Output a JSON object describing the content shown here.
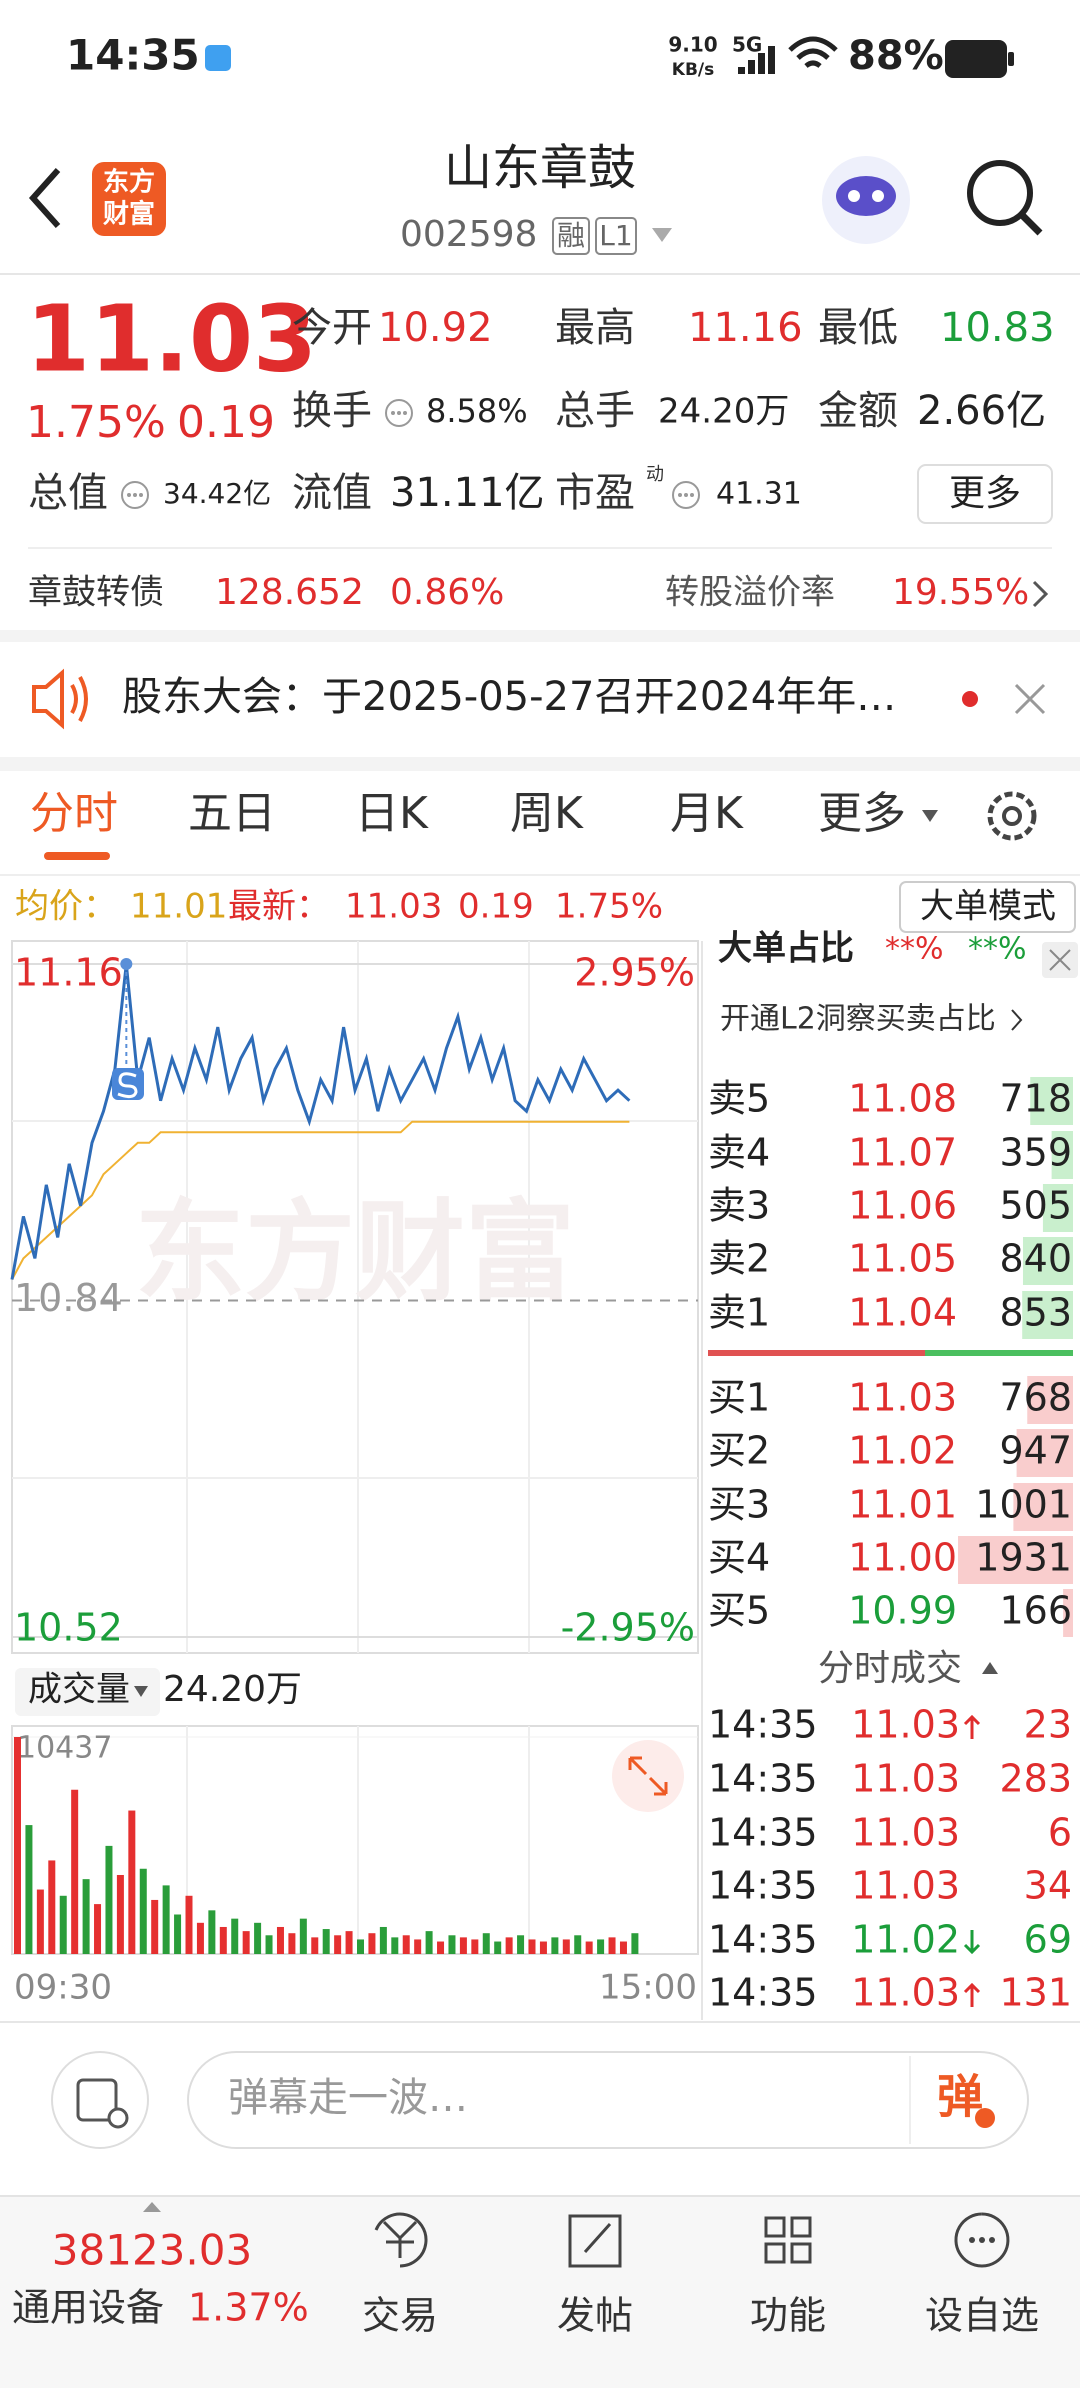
{
  "status_bar": {
    "time": "14:35",
    "net_speed": "9.10",
    "net_unit": "KB/s",
    "network": "5G",
    "battery": "88%"
  },
  "header": {
    "logo": [
      "东方",
      "财富"
    ],
    "title": "山东章鼓",
    "code": "002598",
    "badges": [
      "融",
      "L1"
    ]
  },
  "quote": {
    "price": "11.03",
    "change_pct": "1.75%",
    "change": "0.19",
    "stats": [
      {
        "label": "今开",
        "value": "10.92",
        "tone": "up"
      },
      {
        "label": "最高",
        "value": "11.16",
        "tone": "up"
      },
      {
        "label": "最低",
        "value": "10.83",
        "tone": "down"
      },
      {
        "label": "换手",
        "value": "8.58%",
        "tone": "flat",
        "info": true
      },
      {
        "label": "总手",
        "value": "24.20万",
        "tone": "flat"
      },
      {
        "label": "金额",
        "value": "2.66亿",
        "tone": "flat"
      },
      {
        "label": "总值",
        "value": "34.42亿",
        "tone": "flat",
        "info": true
      },
      {
        "label": "流值",
        "value": "31.11亿",
        "tone": "flat"
      },
      {
        "label": "市盈",
        "sup": "动",
        "value": "41.31",
        "tone": "flat",
        "info": true
      }
    ],
    "more_button": "更多"
  },
  "bond": {
    "name": "章鼓转债",
    "price": "128.652",
    "change_pct": "0.86%",
    "premium_label": "转股溢价率",
    "premium": "19.55%"
  },
  "notice": {
    "text": "股东大会：于2025-05-27召开2024年年…"
  },
  "tabs": [
    "分时",
    "五日",
    "日K",
    "周K",
    "月K",
    "更多"
  ],
  "info_bar": {
    "avg_label": "均价：",
    "avg": "11.01",
    "last_label": "最新：",
    "last": "11.03",
    "change": "0.19",
    "change_pct": "1.75%",
    "mode_button": "大单模式"
  },
  "chart_data": {
    "type": "line",
    "watermark": "东方财富",
    "ylim": [
      10.52,
      11.16
    ],
    "yticks": [
      10.52,
      10.84,
      11.16
    ],
    "pct_labels": [
      "2.95%",
      "-2.95%"
    ],
    "price": [
      10.86,
      10.92,
      10.88,
      10.95,
      10.9,
      10.97,
      10.93,
      10.99,
      11.02,
      11.06,
      11.16,
      11.05,
      11.09,
      11.03,
      11.07,
      11.04,
      11.08,
      11.05,
      11.1,
      11.04,
      11.07,
      11.09,
      11.03,
      11.06,
      11.08,
      11.04,
      11.01,
      11.05,
      11.03,
      11.1,
      11.04,
      11.07,
      11.02,
      11.06,
      11.03,
      11.05,
      11.07,
      11.04,
      11.08,
      11.11,
      11.06,
      11.09,
      11.05,
      11.08,
      11.03,
      11.02,
      11.05,
      11.03,
      11.06,
      11.04,
      11.07,
      11.05,
      11.03,
      11.04,
      11.03
    ],
    "avg": [
      10.86,
      10.88,
      10.89,
      10.9,
      10.91,
      10.92,
      10.93,
      10.94,
      10.96,
      10.97,
      10.98,
      10.99,
      10.99,
      11.0,
      11.0,
      11.0,
      11.0,
      11.0,
      11.0,
      11.0,
      11.0,
      11.0,
      11.0,
      11.0,
      11.0,
      11.0,
      11.0,
      11.0,
      11.0,
      11.0,
      11.0,
      11.0,
      11.0,
      11.0,
      11.0,
      11.01,
      11.01,
      11.01,
      11.01,
      11.01,
      11.01,
      11.01,
      11.01,
      11.01,
      11.01,
      11.01,
      11.01,
      11.01,
      11.01,
      11.01,
      11.01,
      11.01,
      11.01,
      11.01,
      11.01
    ],
    "price_color": "#2e6cb8",
    "avg_color": "#f0b232"
  },
  "volume": {
    "type": "bar",
    "label": "成交量",
    "total": "24.20万",
    "ylim": [
      0,
      10437
    ],
    "yticks": [
      10437
    ],
    "xticks": [
      "09:30",
      "15:00"
    ],
    "values": [
      10437,
      6200,
      3100,
      4500,
      2800,
      7900,
      3600,
      2400,
      5200,
      3800,
      6900,
      4100,
      2600,
      3300,
      1900,
      2800,
      1500,
      2100,
      1300,
      1700,
      1100,
      1500,
      900,
      1300,
      1000,
      1700,
      800,
      1200,
      900,
      1100,
      700,
      1000,
      1300,
      800,
      900,
      700,
      1100,
      600,
      900,
      800,
      700,
      1000,
      600,
      800,
      900,
      700,
      600,
      800,
      700,
      900,
      600,
      700,
      800,
      600,
      1000
    ],
    "rising": [
      true,
      false,
      true,
      true,
      false,
      true,
      false,
      true,
      false,
      true,
      true,
      false,
      true,
      false,
      false,
      true,
      true,
      false,
      true,
      false,
      true,
      false,
      false,
      true,
      true,
      false,
      true,
      false,
      true,
      true,
      false,
      true,
      false,
      false,
      true,
      true,
      false,
      true,
      false,
      true,
      true,
      false,
      false,
      true,
      false,
      true,
      true,
      false,
      true,
      false,
      true,
      false,
      true,
      true,
      false
    ],
    "up_color": "#e53030",
    "down_color": "#2a9d3a"
  },
  "order_book": {
    "big_order_title": "大单占比",
    "big_buy": "**%",
    "big_sell": "**%",
    "l2_link": "开通L2洞察买卖占比",
    "asks": [
      {
        "label": "卖5",
        "price": "11.08",
        "qty": 718,
        "tone": "up"
      },
      {
        "label": "卖4",
        "price": "11.07",
        "qty": 359,
        "tone": "up"
      },
      {
        "label": "卖3",
        "price": "11.06",
        "qty": 505,
        "tone": "up"
      },
      {
        "label": "卖2",
        "price": "11.05",
        "qty": 840,
        "tone": "up"
      },
      {
        "label": "卖1",
        "price": "11.04",
        "qty": 853,
        "tone": "up"
      }
    ],
    "bids": [
      {
        "label": "买1",
        "price": "11.03",
        "qty": 768,
        "tone": "up"
      },
      {
        "label": "买2",
        "price": "11.02",
        "qty": 947,
        "tone": "up"
      },
      {
        "label": "买3",
        "price": "11.01",
        "qty": 1001,
        "tone": "up"
      },
      {
        "label": "买4",
        "price": "11.00",
        "qty": 1931,
        "tone": "up"
      },
      {
        "label": "买5",
        "price": "10.99",
        "qty": 166,
        "tone": "down"
      }
    ]
  },
  "trades": {
    "title": "分时成交",
    "rows": [
      {
        "time": "14:35",
        "price": "11.03",
        "dir": "up",
        "qty": "23",
        "tone": "up"
      },
      {
        "time": "14:35",
        "price": "11.03",
        "dir": "none",
        "qty": "283",
        "tone": "up"
      },
      {
        "time": "14:35",
        "price": "11.03",
        "dir": "none",
        "qty": "6",
        "tone": "up"
      },
      {
        "time": "14:35",
        "price": "11.03",
        "dir": "none",
        "qty": "34",
        "tone": "up"
      },
      {
        "time": "14:35",
        "price": "11.02",
        "dir": "down",
        "qty": "69",
        "tone": "down"
      },
      {
        "time": "14:35",
        "price": "11.03",
        "dir": "up",
        "qty": "131",
        "tone": "up"
      }
    ]
  },
  "comment_bar": {
    "placeholder": "弹幕走一波…",
    "danmaku_button": "弹"
  },
  "nav": {
    "index_value": "38123.03",
    "index_name": "通用设备",
    "index_change": "1.37%",
    "items": [
      "交易",
      "发帖",
      "功能",
      "设自选"
    ]
  }
}
